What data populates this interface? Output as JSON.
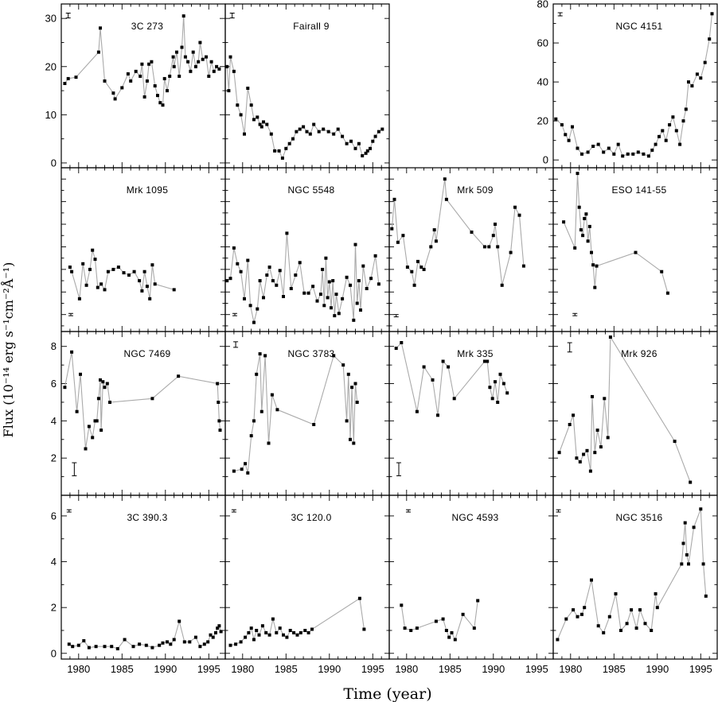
{
  "figure": {
    "xlabel": "Time (year)",
    "ylabel": "Flux (10⁻¹⁴ erg s⁻¹cm⁻²Å⁻¹)",
    "x_tick_labels": [
      "1980",
      "1985",
      "1990",
      "1995"
    ]
  },
  "chart_data": [
    {
      "type": "line",
      "name": "3C 273",
      "xlim": [
        1978,
        1996.9
      ],
      "ylim": [
        -1,
        33
      ],
      "yticks": [
        0,
        10,
        20,
        30
      ],
      "errorbar": {
        "x": 1978.8,
        "y": 30.6,
        "err": 0.5,
        "style": "cap"
      },
      "x": [
        1978.4,
        1978.8,
        1979.7,
        1982.3,
        1982.5,
        1983.0,
        1984.0,
        1984.2,
        1985.0,
        1985.7,
        1986.0,
        1986.6,
        1987.1,
        1987.3,
        1987.6,
        1987.9,
        1988.1,
        1988.4,
        1988.8,
        1989.1,
        1989.4,
        1989.7,
        1989.9,
        1990.2,
        1990.5,
        1990.9,
        1991.0,
        1991.3,
        1991.6,
        1991.9,
        1992.1,
        1992.3,
        1992.6,
        1992.9,
        1993.2,
        1993.5,
        1993.8,
        1994.0,
        1994.3,
        1994.7,
        1995.0,
        1995.3,
        1995.6,
        1995.9,
        1996.2
      ],
      "y": [
        16.5,
        17.5,
        17.8,
        23.0,
        28.0,
        17.0,
        14.5,
        13.3,
        15.6,
        18.5,
        17.0,
        19.0,
        18.0,
        20.5,
        13.7,
        17.0,
        20.5,
        21.0,
        16.0,
        14.0,
        12.5,
        12.0,
        17.5,
        15.0,
        18.0,
        22.0,
        20.0,
        23.0,
        18.0,
        24.0,
        30.5,
        22.0,
        21.0,
        19.0,
        23.0,
        20.0,
        21.0,
        25.0,
        21.5,
        22.0,
        18.0,
        21.0,
        19.0,
        20.0,
        19.5
      ]
    },
    {
      "type": "line",
      "name": "Fairall 9",
      "xlim": [
        1978,
        1996.9
      ],
      "ylim": [
        -1,
        33
      ],
      "errorbar": {
        "x": 1978.8,
        "y": 30.6,
        "err": 0.5,
        "style": "cap"
      },
      "x": [
        1978.2,
        1978.4,
        1978.6,
        1979.0,
        1979.4,
        1979.8,
        1980.2,
        1980.6,
        1981.0,
        1981.3,
        1981.7,
        1982.0,
        1982.2,
        1982.4,
        1982.8,
        1983.3,
        1983.7,
        1984.2,
        1984.6,
        1985.0,
        1985.4,
        1985.8,
        1986.2,
        1986.6,
        1987.0,
        1987.4,
        1987.8,
        1988.2,
        1988.8,
        1989.3,
        1989.9,
        1990.5,
        1991.0,
        1991.5,
        1992.0,
        1992.5,
        1993.0,
        1993.4,
        1993.8,
        1994.2,
        1994.4,
        1994.7,
        1995.0,
        1995.3,
        1995.7,
        1996.1
      ],
      "y": [
        20.0,
        15.0,
        22.0,
        19.0,
        12.0,
        10.0,
        6.0,
        15.5,
        12.0,
        9.0,
        9.5,
        8.0,
        7.5,
        8.5,
        8.0,
        6.0,
        2.5,
        2.5,
        1.0,
        3.0,
        4.0,
        5.0,
        6.5,
        7.0,
        7.5,
        6.5,
        6.0,
        8.0,
        6.5,
        7.0,
        6.5,
        6.0,
        7.0,
        5.5,
        4.0,
        4.5,
        3.0,
        4.0,
        1.5,
        2.0,
        2.5,
        3.0,
        4.5,
        5.5,
        6.5,
        7.0
      ]
    },
    {
      "type": "line",
      "name": "NGC 4151",
      "xlim": [
        1978,
        1996.9
      ],
      "ylim": [
        -4,
        80
      ],
      "yticks": [
        0,
        20,
        40,
        60,
        80
      ],
      "yaxis_side": "right",
      "errorbar": {
        "x": 1978.8,
        "y": 74.7,
        "err": 0.8,
        "style": "cap"
      },
      "x": [
        1978.3,
        1979.0,
        1979.4,
        1979.8,
        1980.2,
        1980.8,
        1981.3,
        1982.0,
        1982.6,
        1983.2,
        1983.8,
        1984.4,
        1985.0,
        1985.5,
        1986.0,
        1986.6,
        1987.2,
        1987.8,
        1988.4,
        1989.0,
        1989.4,
        1989.8,
        1990.2,
        1990.6,
        1991.0,
        1991.4,
        1991.8,
        1992.2,
        1992.6,
        1993.0,
        1993.3,
        1993.6,
        1994.0,
        1994.6,
        1995.0,
        1995.5,
        1996.0,
        1996.3
      ],
      "y": [
        21.0,
        18.0,
        13.0,
        10.0,
        17.0,
        6.0,
        3.0,
        4.0,
        7.0,
        8.0,
        4.0,
        6.0,
        3.0,
        8.0,
        2.0,
        3.0,
        3.0,
        4.0,
        3.0,
        2.0,
        5.0,
        8.0,
        12.0,
        15.0,
        10.0,
        18.0,
        22.0,
        15.0,
        8.0,
        20.0,
        26.0,
        40.0,
        38.0,
        44.0,
        42.0,
        50.0,
        62.0,
        75.0
      ]
    },
    {
      "type": "line",
      "name": "Mrk 1095",
      "xlim": [
        1978,
        1996.9
      ],
      "ylim": [
        0.5,
        15
      ],
      "errorbar": {
        "x": 1979.1,
        "y": 2.0,
        "err": 0.1,
        "style": "cap"
      },
      "x": [
        1979.0,
        1979.2,
        1980.1,
        1980.5,
        1980.9,
        1981.3,
        1981.6,
        1981.9,
        1982.2,
        1982.6,
        1983.0,
        1983.4,
        1984.0,
        1984.6,
        1985.2,
        1985.8,
        1986.4,
        1987.0,
        1987.3,
        1987.6,
        1987.9,
        1988.2,
        1988.5,
        1988.8,
        1991.0
      ],
      "y": [
        6.2,
        5.8,
        3.4,
        6.5,
        4.6,
        6.0,
        7.7,
        6.9,
        4.4,
        4.7,
        4.2,
        5.8,
        6.0,
        6.2,
        5.7,
        5.5,
        5.8,
        5.0,
        4.1,
        5.8,
        4.5,
        3.4,
        6.4,
        4.7,
        4.2
      ]
    },
    {
      "type": "line",
      "name": "NGC 5548",
      "xlim": [
        1978,
        1996.9
      ],
      "ylim": [
        0.5,
        15
      ],
      "errorbar": {
        "x": 1979.1,
        "y": 2.0,
        "err": 0.1,
        "style": "cap"
      },
      "x": [
        1978.2,
        1978.6,
        1979.0,
        1979.4,
        1979.8,
        1980.2,
        1980.6,
        1980.9,
        1981.3,
        1981.7,
        1982.0,
        1982.4,
        1982.8,
        1983.1,
        1983.5,
        1983.9,
        1984.3,
        1984.7,
        1985.1,
        1985.6,
        1986.1,
        1986.6,
        1987.1,
        1987.6,
        1988.1,
        1988.6,
        1989.0,
        1989.2,
        1989.4,
        1989.6,
        1989.8,
        1990.0,
        1990.2,
        1990.4,
        1990.6,
        1990.8,
        1991.1,
        1991.5,
        1992.0,
        1992.4,
        1992.8,
        1993.0,
        1993.2,
        1993.4,
        1993.6,
        1993.9,
        1994.3,
        1994.8,
        1995.3,
        1995.7
      ],
      "y": [
        5.0,
        5.2,
        7.9,
        6.5,
        5.8,
        3.4,
        6.8,
        2.8,
        1.3,
        2.5,
        5.0,
        3.5,
        5.5,
        6.2,
        5.0,
        4.6,
        5.9,
        3.6,
        9.2,
        4.3,
        5.5,
        6.6,
        3.9,
        3.9,
        4.5,
        3.2,
        3.8,
        6.0,
        2.8,
        7.0,
        3.5,
        4.9,
        2.6,
        5.0,
        1.9,
        3.8,
        2.1,
        3.4,
        5.3,
        4.6,
        1.5,
        8.2,
        3.0,
        5.0,
        2.4,
        6.3,
        4.3,
        5.2,
        7.2,
        4.7
      ]
    },
    {
      "type": "line",
      "name": "Mrk 509",
      "xlim": [
        1978,
        1996.9
      ],
      "ylim": [
        0.5,
        15
      ],
      "errorbar": {
        "x": 1978.8,
        "y": 1.9,
        "err": 0.1,
        "style": "cap"
      },
      "x": [
        1978.3,
        1978.6,
        1979.0,
        1979.6,
        1980.1,
        1980.6,
        1980.9,
        1981.3,
        1981.7,
        1982.0,
        1982.8,
        1983.2,
        1983.4,
        1984.4,
        1984.6,
        1987.5,
        1989.0,
        1989.5,
        1990.0,
        1990.2,
        1990.5,
        1991.0,
        1992.0,
        1992.5,
        1993.0,
        1993.5
      ],
      "y": [
        9.6,
        12.2,
        8.4,
        9.0,
        6.2,
        5.8,
        4.6,
        6.7,
        6.2,
        6.0,
        8.0,
        9.5,
        8.5,
        14.0,
        12.2,
        9.3,
        8.0,
        8.0,
        9.0,
        10.0,
        8.0,
        4.6,
        7.5,
        11.5,
        10.8,
        6.3
      ]
    },
    {
      "type": "line",
      "name": "ESO 141-55",
      "xlim": [
        1978,
        1996.9
      ],
      "ylim": [
        0.5,
        15
      ],
      "errorbar": {
        "x": 1980.5,
        "y": 2.0,
        "err": 0.1,
        "style": "cap"
      },
      "x": [
        1979.2,
        1980.5,
        1980.8,
        1981.0,
        1981.2,
        1981.4,
        1981.6,
        1981.8,
        1982.0,
        1982.2,
        1982.4,
        1982.6,
        1982.8,
        1983.0,
        1987.5,
        1990.5,
        1991.2
      ],
      "y": [
        10.2,
        7.9,
        14.5,
        11.5,
        9.5,
        9.0,
        10.5,
        10.9,
        8.5,
        9.8,
        7.5,
        6.4,
        4.4,
        6.3,
        7.5,
        5.8,
        3.9
      ]
    },
    {
      "type": "line",
      "name": "NGC 7469",
      "xlim": [
        1978,
        1996.9
      ],
      "ylim": [
        0,
        8.8
      ],
      "yticks": [
        2,
        4,
        6,
        8
      ],
      "errorbar": {
        "x": 1979.5,
        "y": 1.4,
        "err": 0.35,
        "style": "cap"
      },
      "x": [
        1978.4,
        1979.2,
        1979.8,
        1980.2,
        1980.8,
        1981.2,
        1981.6,
        1981.9,
        1982.1,
        1982.3,
        1982.5,
        1982.6,
        1982.8,
        1983.0,
        1983.3,
        1983.6,
        1988.5,
        1991.5,
        1996.0,
        1996.1,
        1996.2,
        1996.3
      ],
      "y": [
        5.8,
        7.7,
        4.5,
        6.5,
        2.5,
        3.7,
        3.1,
        4.0,
        4.0,
        5.2,
        6.2,
        3.5,
        6.1,
        5.8,
        6.0,
        5.0,
        5.2,
        6.4,
        6.0,
        5.0,
        4.0,
        3.5
      ]
    },
    {
      "type": "line",
      "name": "NGC 3783",
      "xlim": [
        1978,
        1996.9
      ],
      "ylim": [
        0,
        8.8
      ],
      "errorbar": {
        "x": 1979.2,
        "y": 8.1,
        "err": 0.15,
        "style": "cap"
      },
      "x": [
        1979.0,
        1979.9,
        1980.3,
        1980.6,
        1981.0,
        1981.3,
        1981.6,
        1982.0,
        1982.2,
        1982.6,
        1983.0,
        1983.4,
        1984.0,
        1988.2,
        1990.5,
        1991.6,
        1992.0,
        1992.2,
        1992.4,
        1992.6,
        1992.8,
        1993.0,
        1993.2
      ],
      "y": [
        1.3,
        1.4,
        1.7,
        1.2,
        3.2,
        4.0,
        6.5,
        7.6,
        4.5,
        7.5,
        2.8,
        5.4,
        4.6,
        3.8,
        7.5,
        7.0,
        4.0,
        6.5,
        3.0,
        5.8,
        2.8,
        6.0,
        5.0
      ]
    },
    {
      "type": "line",
      "name": "Mrk 335",
      "xlim": [
        1978,
        1996.9
      ],
      "ylim": [
        0,
        8.8
      ],
      "errorbar": {
        "x": 1979.1,
        "y": 1.4,
        "err": 0.35,
        "style": "cap"
      },
      "x": [
        1978.8,
        1979.4,
        1981.2,
        1982.0,
        1983.0,
        1983.6,
        1984.2,
        1984.8,
        1985.5,
        1989.0,
        1989.3,
        1989.6,
        1989.9,
        1990.2,
        1990.5,
        1990.8,
        1991.2,
        1991.6
      ],
      "y": [
        7.9,
        8.2,
        4.5,
        6.9,
        6.2,
        4.3,
        7.2,
        6.9,
        5.2,
        7.2,
        7.2,
        5.8,
        5.2,
        6.1,
        5.0,
        6.5,
        6.0,
        5.5
      ]
    },
    {
      "type": "line",
      "name": "Mrk 926",
      "xlim": [
        1978,
        1996.9
      ],
      "ylim": [
        0,
        8.8
      ],
      "errorbar": {
        "x": 1979.9,
        "y": 7.95,
        "err": 0.25,
        "style": "cap"
      },
      "x": [
        1978.7,
        1979.9,
        1980.3,
        1980.7,
        1981.1,
        1981.5,
        1981.9,
        1982.3,
        1982.5,
        1982.8,
        1983.1,
        1983.5,
        1983.9,
        1984.3,
        1984.6,
        1992.0,
        1993.8
      ],
      "y": [
        2.3,
        3.8,
        4.3,
        2.0,
        1.8,
        2.2,
        2.4,
        1.3,
        5.3,
        2.3,
        3.5,
        2.6,
        5.2,
        3.1,
        8.5,
        2.9,
        0.7
      ]
    },
    {
      "type": "line",
      "name": "3C 390.3",
      "xlim": [
        1978,
        1996.9
      ],
      "ylim": [
        -0.25,
        6.9
      ],
      "yticks": [
        0,
        2,
        4,
        6
      ],
      "errorbar": {
        "x": 1978.9,
        "y": 6.22,
        "err": 0.05,
        "style": "cap"
      },
      "x": [
        1978.9,
        1979.3,
        1980.0,
        1980.6,
        1981.2,
        1982.0,
        1983.0,
        1983.8,
        1984.5,
        1985.3,
        1986.3,
        1987.0,
        1987.8,
        1988.5,
        1989.3,
        1989.7,
        1990.2,
        1990.6,
        1991.0,
        1991.6,
        1992.2,
        1992.8,
        1993.5,
        1994.0,
        1994.5,
        1994.9,
        1995.2,
        1995.5,
        1995.8,
        1996.0,
        1996.2,
        1996.4
      ],
      "y": [
        0.4,
        0.3,
        0.35,
        0.55,
        0.25,
        0.3,
        0.3,
        0.3,
        0.2,
        0.6,
        0.3,
        0.4,
        0.35,
        0.25,
        0.35,
        0.45,
        0.5,
        0.4,
        0.6,
        1.4,
        0.5,
        0.5,
        0.7,
        0.3,
        0.4,
        0.5,
        0.8,
        0.7,
        0.9,
        1.1,
        1.2,
        0.95
      ]
    },
    {
      "type": "line",
      "name": "3C 120.0",
      "xlim": [
        1978,
        1996.9
      ],
      "ylim": [
        -0.25,
        6.9
      ],
      "errorbar": {
        "x": 1979.0,
        "y": 6.22,
        "err": 0.05,
        "style": "cap"
      },
      "x": [
        1978.6,
        1979.2,
        1979.8,
        1980.3,
        1980.7,
        1981.0,
        1981.3,
        1981.6,
        1981.9,
        1982.3,
        1982.7,
        1983.1,
        1983.5,
        1983.9,
        1984.3,
        1984.7,
        1985.1,
        1985.5,
        1985.9,
        1986.3,
        1986.7,
        1987.2,
        1987.6,
        1988.0,
        1993.5,
        1994.0
      ],
      "y": [
        0.35,
        0.4,
        0.5,
        0.7,
        0.9,
        1.1,
        0.6,
        1.0,
        0.8,
        1.2,
        0.9,
        0.8,
        1.5,
        0.9,
        1.1,
        0.8,
        0.7,
        1.0,
        0.9,
        0.8,
        0.9,
        1.0,
        0.9,
        1.05,
        2.4,
        1.05
      ]
    },
    {
      "type": "line",
      "name": "NGC 4593",
      "xlim": [
        1978,
        1996.9
      ],
      "ylim": [
        -0.25,
        6.9
      ],
      "errorbar": {
        "x": 1980.2,
        "y": 6.22,
        "err": 0.05,
        "style": "cap"
      },
      "x": [
        1979.4,
        1979.8,
        1980.5,
        1981.2,
        1983.4,
        1984.2,
        1984.6,
        1984.9,
        1985.2,
        1985.6,
        1986.5,
        1987.8,
        1988.2
      ],
      "y": [
        2.1,
        1.1,
        1.0,
        1.1,
        1.4,
        1.5,
        1.0,
        0.7,
        0.9,
        0.6,
        1.7,
        1.1,
        2.3
      ]
    },
    {
      "type": "line",
      "name": "NGC 3516",
      "xlim": [
        1978,
        1996.9
      ],
      "ylim": [
        -0.25,
        6.9
      ],
      "errorbar": {
        "x": 1978.6,
        "y": 6.22,
        "err": 0.05,
        "style": "cap"
      },
      "x": [
        1978.5,
        1979.5,
        1980.3,
        1980.8,
        1981.3,
        1981.6,
        1982.4,
        1983.2,
        1983.8,
        1984.5,
        1985.2,
        1985.8,
        1986.5,
        1987.0,
        1987.6,
        1988.0,
        1988.6,
        1989.3,
        1989.8,
        1990.0,
        1992.8,
        1993.0,
        1993.2,
        1993.4,
        1993.6,
        1994.2,
        1995.0,
        1995.3,
        1995.6
      ],
      "y": [
        0.6,
        1.5,
        1.9,
        1.6,
        1.7,
        2.0,
        3.2,
        1.2,
        0.9,
        1.6,
        2.6,
        1.0,
        1.3,
        1.9,
        1.1,
        1.9,
        1.3,
        1.0,
        2.6,
        2.0,
        3.9,
        4.8,
        5.7,
        4.3,
        3.9,
        5.5,
        6.3,
        3.9,
        2.5
      ]
    }
  ]
}
